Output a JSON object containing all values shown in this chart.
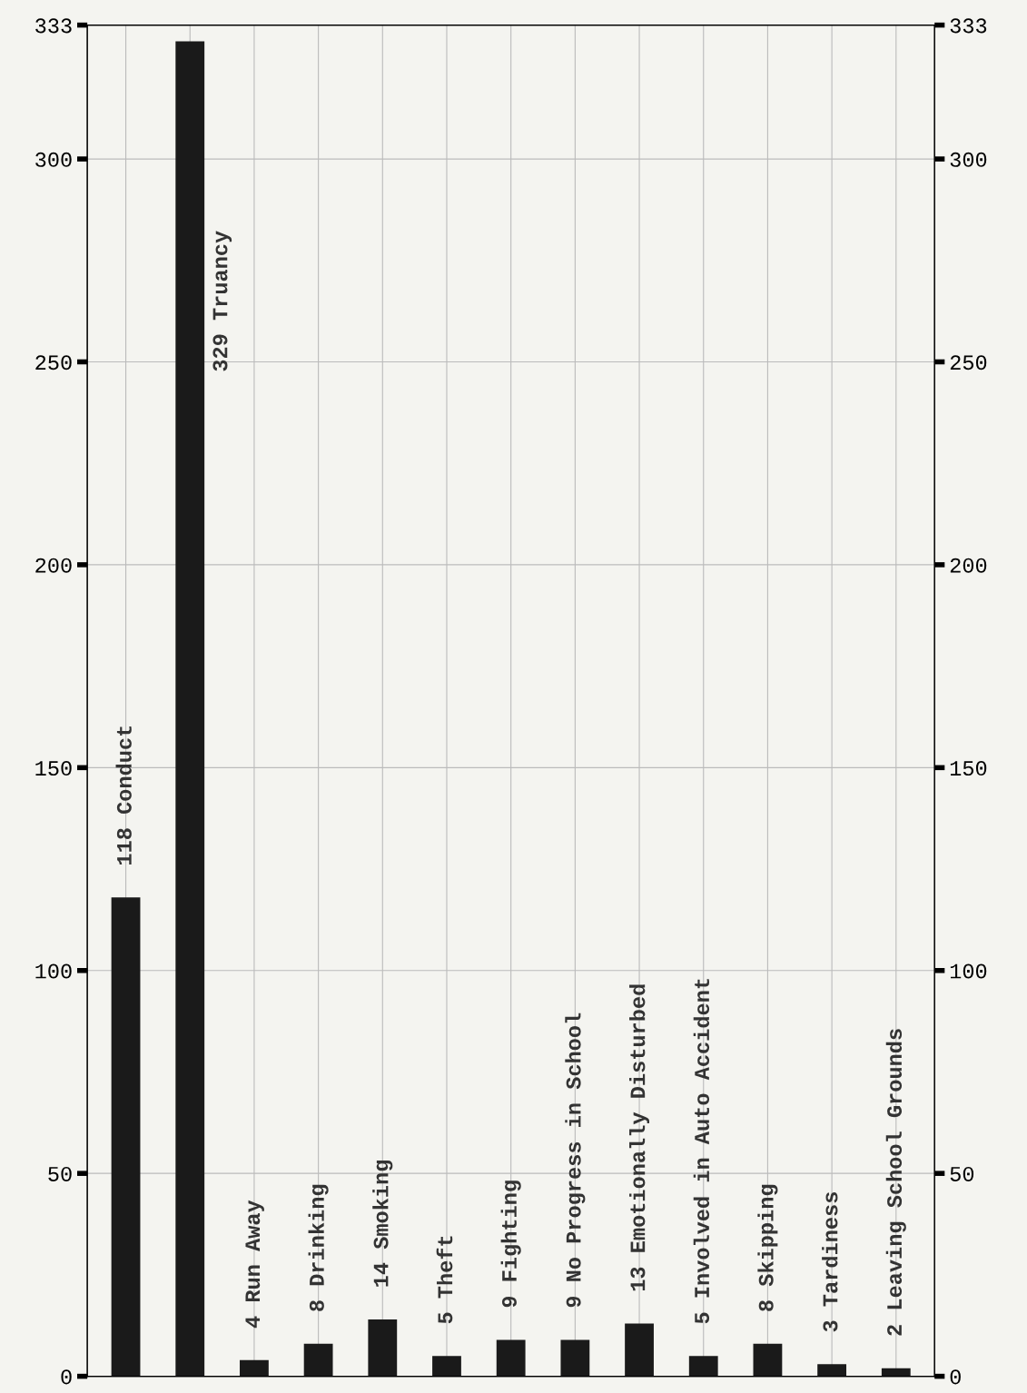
{
  "chart_data": {
    "type": "bar",
    "categories": [
      null,
      null,
      null,
      null,
      null,
      null,
      null,
      null,
      null,
      null,
      null,
      null,
      null
    ],
    "values": [
      118,
      329,
      4,
      8,
      14,
      5,
      9,
      9,
      13,
      5,
      8,
      3,
      2
    ],
    "value_labels": [
      "118 Conduct",
      "329 Truancy",
      "4 Run Away",
      "8 Drinking",
      "14 Smoking",
      "5 Theft",
      "9 Fighting",
      "9 No Progress in School",
      "13 Emotionally Disturbed",
      "5 Involved in Auto Accident",
      "8 Skipping",
      "3 Tardiness",
      "2 Leaving School Grounds"
    ],
    "color": "#1a1a1a",
    "ylim": [
      0,
      333
    ],
    "yticks": [
      0,
      50,
      100,
      150,
      200,
      250,
      300,
      333
    ],
    "y2lim": [
      0,
      333
    ],
    "y2ticks": [
      0,
      50,
      100,
      150,
      200,
      250,
      300,
      333
    ],
    "tick_labels": "y",
    "grid": true
  }
}
